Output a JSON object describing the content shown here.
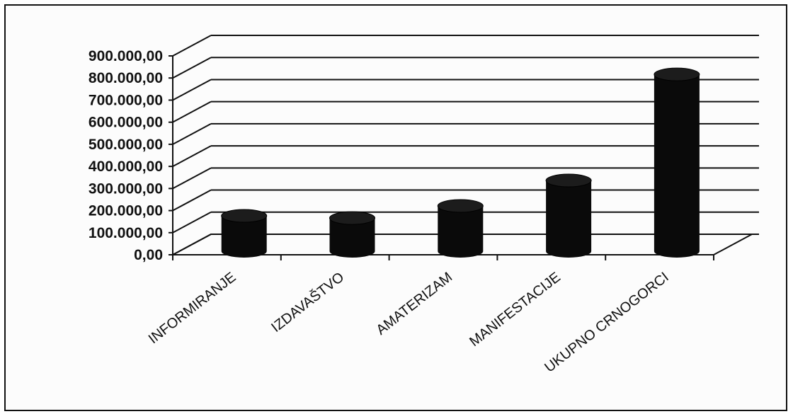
{
  "chart_data": {
    "type": "bar",
    "style": "3d-cylinder",
    "categories": [
      "INFORMIRANJE",
      "IZDAVAŠTVO",
      "AMATERIZAM",
      "MANIFESTACIJE",
      "UKUPNO CRNOGORCI"
    ],
    "values": [
      160000,
      150000,
      205000,
      320000,
      800000
    ],
    "yticks": [
      "0,00",
      "100.000,00",
      "200.000,00",
      "300.000,00",
      "400.000,00",
      "500.000,00",
      "600.000,00",
      "700.000,00",
      "800.000,00",
      "900.000,00"
    ],
    "ylim": [
      0,
      900000
    ],
    "grid": true,
    "legend": "none",
    "bar_color": "#0a0a0a"
  }
}
